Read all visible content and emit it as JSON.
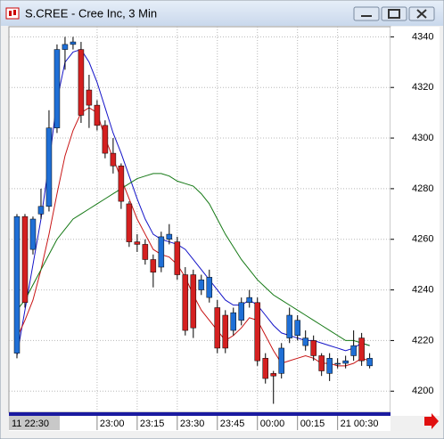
{
  "window": {
    "title": "S.CREE - Cree Inc, 3 Min"
  },
  "chart_data": {
    "type": "candlestick",
    "open": [
      4215,
      4269,
      4256,
      4270,
      4273,
      4304,
      4335,
      4337,
      4335,
      4319,
      4313,
      4305,
      4294,
      4289,
      4274,
      4259,
      4258,
      4252,
      4249,
      4260,
      4259,
      4246,
      4246,
      4240,
      4237,
      4233,
      4230,
      4224,
      4228,
      4235,
      4235,
      4213,
      4207,
      4207,
      4221,
      4222,
      4218,
      4220,
      4214,
      4207,
      4211,
      4211,
      4214,
      4221,
      4210
    ],
    "high": [
      4270,
      4270,
      4269,
      4280,
      4311,
      4337,
      4340,
      4340,
      4338,
      4325,
      4315,
      4307,
      4300,
      4290,
      4275,
      4262,
      4260,
      4254,
      4263,
      4266,
      4261,
      4249,
      4248,
      4246,
      4248,
      4236,
      4232,
      4233,
      4237,
      4240,
      4237,
      4215,
      4208,
      4219,
      4233,
      4230,
      4224,
      4222,
      4215,
      4215,
      4213,
      4214,
      4224,
      4223,
      4215
    ],
    "low": [
      4213,
      4233,
      4254,
      4268,
      4271,
      4302,
      4327,
      4335,
      4306,
      4304,
      4303,
      4292,
      4286,
      4272,
      4257,
      4255,
      4250,
      4241,
      4247,
      4258,
      4244,
      4222,
      4221,
      4238,
      4235,
      4215,
      4215,
      4222,
      4226,
      4233,
      4210,
      4203,
      4195,
      4205,
      4219,
      4220,
      4216,
      4212,
      4206,
      4204,
      4209,
      4209,
      4212,
      4210,
      4209
    ],
    "close": [
      4269,
      4235,
      4268,
      4273,
      4304,
      4335,
      4337,
      4338,
      4309,
      4313,
      4305,
      4294,
      4289,
      4275,
      4259,
      4258,
      4252,
      4247,
      4261,
      4262,
      4246,
      4224,
      4225,
      4244,
      4245,
      4217,
      4217,
      4231,
      4235,
      4237,
      4212,
      4205,
      4206,
      4217,
      4230,
      4228,
      4221,
      4214,
      4208,
      4213,
      4211,
      4212,
      4218,
      4212,
      4213
    ],
    "up_color": "#1f6fd6",
    "down_color": "#d42020",
    "series": [
      {
        "color": "#1414c8",
        "values": [
          4214,
          4232,
          4250,
          4268,
          4290,
          4315,
          4330,
          4334,
          4335,
          4330,
          4322,
          4312,
          4302,
          4294,
          4285,
          4276,
          4268,
          4262,
          4260,
          4259,
          4258,
          4256,
          4252,
          4248,
          4244,
          4240,
          4236,
          4234,
          4234,
          4236,
          4234,
          4230,
          4226,
          4223,
          4222,
          4221,
          4220,
          4220,
          4219,
          4218,
          4217,
          4216,
          4217,
          4219,
          4218
        ]
      },
      {
        "color": "#c81414",
        "values": [
          4221,
          4228,
          4236,
          4248,
          4262,
          4278,
          4293,
          4303,
          4310,
          4312,
          4310,
          4300,
          4292,
          4284,
          4276,
          4268,
          4262,
          4256,
          4254,
          4253,
          4250,
          4245,
          4238,
          4232,
          4228,
          4224,
          4220,
          4222,
          4225,
          4229,
          4228,
          4222,
          4216,
          4211,
          4212,
          4213,
          4214,
          4213,
          4211,
          4211,
          4210,
          4210,
          4211,
          4213,
          4212
        ]
      },
      {
        "color": "#147814",
        "values": [
          4232,
          4236,
          4242,
          4248,
          4254,
          4260,
          4264,
          4268,
          4270,
          4272,
          4274,
          4276,
          4278,
          4280,
          4282,
          4284,
          4285,
          4286,
          4286,
          4285,
          4283,
          4282,
          4281,
          4278,
          4274,
          4268,
          4262,
          4257,
          4252,
          4248,
          4244,
          4241,
          4238,
          4236,
          4234,
          4232,
          4230,
          4228,
          4226,
          4224,
          4222,
          4220,
          4220,
          4219,
          4218
        ]
      }
    ],
    "xlim": [
      -1,
      46.6
    ],
    "xticks": [
      {
        "value": 10,
        "label": "23:00"
      },
      {
        "value": 15,
        "label": "23:15"
      },
      {
        "value": 20,
        "label": "23:30"
      },
      {
        "value": 25,
        "label": "23:45"
      },
      {
        "value": 30,
        "label": "00:00"
      },
      {
        "value": 35,
        "label": "00:15"
      },
      {
        "value": 40,
        "label": "21 00:30"
      }
    ],
    "cursor_label": "11 22:30",
    "ylim": [
      4192,
      4344
    ],
    "yticks": [
      4200,
      4220,
      4240,
      4260,
      4280,
      4300,
      4320,
      4340
    ],
    "grid": true
  }
}
